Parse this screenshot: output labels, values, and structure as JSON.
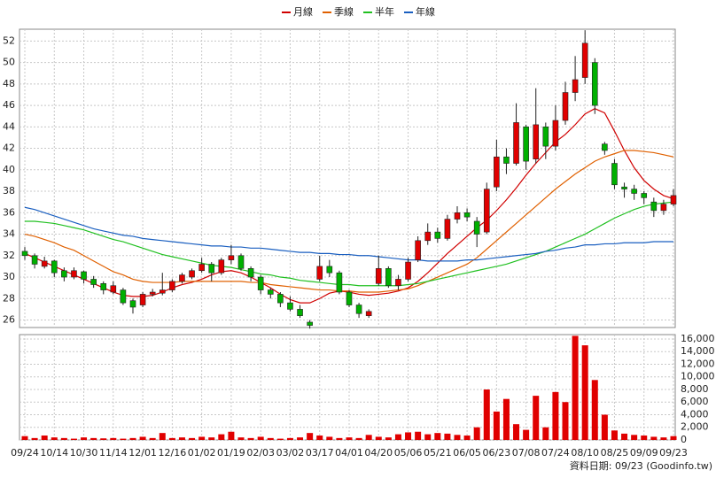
{
  "chart_data": {
    "type": "candlestick",
    "legend_position": "top",
    "grid": true,
    "categories": [
      "09/24",
      null,
      null,
      "10/14",
      null,
      null,
      "10/30",
      null,
      null,
      "11/14",
      null,
      null,
      "12/01",
      null,
      null,
      "12/16",
      null,
      null,
      "01/02",
      null,
      null,
      "01/19",
      null,
      null,
      "02/03",
      null,
      null,
      "03/02",
      null,
      null,
      "03/17",
      null,
      null,
      "04/01",
      null,
      null,
      "04/20",
      null,
      null,
      "05/06",
      null,
      null,
      "05/21",
      null,
      null,
      "06/05",
      null,
      null,
      "06/23",
      null,
      null,
      "07/08",
      null,
      null,
      "07/24",
      null,
      null,
      "08/10",
      null,
      null,
      "08/25",
      null,
      null,
      "09/09",
      null,
      null,
      "09/23"
    ],
    "open": [
      32.4,
      32.0,
      31.0,
      31.5,
      30.6,
      30.0,
      30.5,
      29.8,
      29.4,
      28.6,
      28.8,
      27.8,
      27.4,
      28.4,
      28.5,
      28.8,
      29.6,
      30.0,
      30.6,
      31.2,
      30.4,
      31.6,
      32.0,
      30.8,
      30.0,
      28.8,
      28.4,
      27.6,
      27.0,
      25.8,
      29.8,
      31.0,
      30.4,
      28.6,
      27.4,
      26.4,
      29.4,
      30.8,
      29.2,
      29.8,
      31.6,
      33.4,
      34.2,
      33.6,
      35.4,
      36.0,
      35.2,
      34.2,
      38.4,
      41.2,
      40.6,
      44.0,
      41.0,
      44.0,
      42.2,
      44.6,
      47.2,
      48.6,
      50.0,
      42.4,
      40.6,
      38.4,
      38.2,
      37.8,
      37.0,
      36.2,
      36.8
    ],
    "high": [
      32.8,
      32.2,
      31.9,
      31.6,
      30.9,
      30.9,
      30.6,
      30.1,
      29.6,
      29.6,
      29.0,
      28.0,
      28.6,
      28.9,
      30.4,
      29.8,
      30.4,
      30.8,
      31.8,
      31.4,
      31.8,
      33.0,
      32.2,
      31.0,
      30.2,
      29.0,
      28.6,
      28.2,
      27.4,
      26.0,
      32.0,
      31.6,
      30.6,
      28.8,
      27.6,
      27.0,
      32.0,
      31.0,
      30.2,
      31.8,
      33.8,
      35.0,
      34.6,
      35.8,
      36.6,
      36.4,
      35.6,
      38.8,
      42.8,
      42.0,
      46.2,
      44.2,
      47.6,
      44.4,
      46.0,
      48.2,
      50.6,
      53.0,
      50.4,
      42.6,
      41.0,
      38.8,
      38.6,
      38.0,
      37.4,
      37.2,
      38.2
    ],
    "low": [
      31.6,
      30.8,
      30.8,
      30.0,
      29.6,
      29.8,
      29.4,
      29.0,
      28.4,
      28.4,
      27.4,
      26.6,
      27.2,
      28.2,
      28.3,
      28.6,
      29.4,
      29.8,
      30.4,
      29.6,
      30.2,
      31.2,
      30.6,
      29.6,
      28.4,
      28.0,
      27.2,
      26.8,
      26.2,
      25.2,
      29.6,
      30.0,
      28.4,
      27.2,
      26.2,
      26.2,
      29.2,
      29.0,
      28.8,
      29.6,
      31.4,
      33.0,
      33.2,
      33.4,
      35.0,
      35.2,
      32.8,
      34.0,
      38.0,
      39.6,
      40.4,
      40.0,
      40.6,
      41.0,
      41.8,
      44.2,
      46.4,
      48.0,
      45.2,
      41.4,
      38.2,
      37.4,
      37.2,
      36.8,
      35.6,
      35.8,
      36.6
    ],
    "close": [
      32.0,
      31.2,
      31.5,
      30.4,
      30.0,
      30.6,
      29.8,
      29.3,
      28.8,
      29.2,
      27.6,
      27.2,
      28.4,
      28.6,
      28.8,
      29.6,
      30.2,
      30.6,
      31.2,
      30.4,
      31.6,
      32.0,
      30.8,
      30.0,
      28.8,
      28.4,
      27.6,
      27.0,
      26.4,
      25.5,
      31.0,
      30.4,
      28.6,
      27.4,
      26.6,
      26.8,
      30.8,
      29.2,
      29.8,
      31.4,
      33.4,
      34.2,
      33.6,
      35.4,
      36.0,
      35.6,
      34.0,
      38.2,
      41.2,
      40.6,
      44.4,
      40.8,
      44.2,
      42.2,
      44.6,
      47.2,
      48.4,
      51.8,
      46.0,
      41.8,
      38.6,
      38.2,
      37.8,
      37.4,
      36.2,
      36.8,
      37.6
    ],
    "up_color": "#e00000",
    "down_color": "#00b000",
    "ylim": [
      25.3,
      53.1
    ],
    "yticks": [
      26,
      28,
      30,
      32,
      34,
      36,
      38,
      40,
      42,
      44,
      46,
      48,
      50,
      52
    ],
    "series": [
      {
        "name": "月線",
        "color": "#d00000",
        "values": [
          32.2,
          31.8,
          31.4,
          31.0,
          30.6,
          30.2,
          29.8,
          29.4,
          29.0,
          28.6,
          28.3,
          28.2,
          28.2,
          28.3,
          28.6,
          29.0,
          29.3,
          29.5,
          29.8,
          30.2,
          30.5,
          30.6,
          30.4,
          30.0,
          29.5,
          29.0,
          28.4,
          27.9,
          27.6,
          27.6,
          28.0,
          28.5,
          28.7,
          28.6,
          28.4,
          28.3,
          28.4,
          28.5,
          28.7,
          29.0,
          29.6,
          30.4,
          31.3,
          32.2,
          33.0,
          33.8,
          34.6,
          35.3,
          36.2,
          37.2,
          38.3,
          39.5,
          40.6,
          41.6,
          42.6,
          43.3,
          44.2,
          45.2,
          45.7,
          45.3,
          43.6,
          41.8,
          40.2,
          39.0,
          38.2,
          37.6,
          37.3
        ]
      },
      {
        "name": "季線",
        "color": "#e06000",
        "values": [
          34.0,
          33.8,
          33.5,
          33.2,
          32.8,
          32.5,
          32.0,
          31.5,
          31.0,
          30.5,
          30.2,
          29.8,
          29.6,
          29.5,
          29.5,
          29.5,
          29.6,
          29.6,
          29.6,
          29.6,
          29.6,
          29.6,
          29.6,
          29.5,
          29.5,
          29.3,
          29.2,
          29.1,
          29.0,
          28.9,
          28.8,
          28.8,
          28.7,
          28.7,
          28.6,
          28.6,
          28.6,
          28.7,
          28.8,
          28.9,
          29.2,
          29.6,
          30.0,
          30.4,
          30.8,
          31.2,
          31.8,
          32.6,
          33.4,
          34.2,
          35.0,
          35.8,
          36.6,
          37.4,
          38.2,
          38.9,
          39.6,
          40.2,
          40.8,
          41.2,
          41.5,
          41.8,
          41.8,
          41.7,
          41.6,
          41.4,
          41.2
        ]
      },
      {
        "name": "半年",
        "color": "#20c020",
        "values": [
          35.2,
          35.2,
          35.1,
          35.0,
          34.8,
          34.6,
          34.4,
          34.1,
          33.8,
          33.5,
          33.3,
          33.0,
          32.7,
          32.4,
          32.1,
          31.9,
          31.7,
          31.5,
          31.3,
          31.1,
          31.0,
          30.9,
          30.7,
          30.5,
          30.3,
          30.2,
          30.0,
          29.9,
          29.7,
          29.6,
          29.5,
          29.4,
          29.3,
          29.3,
          29.2,
          29.2,
          29.2,
          29.2,
          29.2,
          29.3,
          29.4,
          29.6,
          29.8,
          30.0,
          30.2,
          30.4,
          30.6,
          30.8,
          31.0,
          31.2,
          31.5,
          31.8,
          32.1,
          32.4,
          32.8,
          33.2,
          33.6,
          34.0,
          34.5,
          35.0,
          35.5,
          35.9,
          36.3,
          36.6,
          36.8,
          36.9,
          37.0
        ]
      },
      {
        "name": "年線",
        "color": "#1a5fc0",
        "values": [
          36.5,
          36.3,
          36.0,
          35.7,
          35.4,
          35.1,
          34.8,
          34.5,
          34.3,
          34.1,
          33.9,
          33.8,
          33.6,
          33.5,
          33.4,
          33.3,
          33.2,
          33.1,
          33.0,
          32.9,
          32.9,
          32.8,
          32.8,
          32.7,
          32.7,
          32.6,
          32.5,
          32.4,
          32.3,
          32.3,
          32.2,
          32.2,
          32.1,
          32.1,
          32.0,
          32.0,
          31.9,
          31.8,
          31.7,
          31.6,
          31.6,
          31.5,
          31.5,
          31.5,
          31.5,
          31.6,
          31.6,
          31.7,
          31.8,
          31.9,
          32.0,
          32.1,
          32.2,
          32.4,
          32.5,
          32.7,
          32.8,
          33.0,
          33.0,
          33.1,
          33.1,
          33.2,
          33.2,
          33.2,
          33.3,
          33.3,
          33.3
        ]
      }
    ],
    "volume": {
      "color": "#e00000",
      "values": [
        600,
        300,
        700,
        400,
        300,
        200,
        400,
        300,
        250,
        300,
        200,
        300,
        500,
        300,
        1100,
        300,
        400,
        300,
        500,
        400,
        900,
        1300,
        400,
        300,
        500,
        300,
        200,
        300,
        400,
        1100,
        700,
        500,
        300,
        400,
        300,
        800,
        500,
        400,
        900,
        1200,
        1300,
        900,
        1100,
        1000,
        800,
        700,
        2000,
        8000,
        4500,
        6500,
        2500,
        1600,
        7000,
        2000,
        7600,
        6000,
        16500,
        15000,
        9500,
        4000,
        1500,
        1000,
        800,
        700,
        500,
        400,
        600
      ],
      "ylim": [
        0,
        16700
      ],
      "yticks": [
        0,
        {
          "value": 2000,
          "label": "2,000"
        },
        {
          "value": 4000,
          "label": "4,000"
        },
        {
          "value": 6000,
          "label": "6,000"
        },
        {
          "value": 8000,
          "label": "8,000"
        },
        {
          "value": 10000,
          "label": "10,000"
        },
        {
          "value": 12000,
          "label": "12,000"
        },
        {
          "value": 14000,
          "label": "14,000"
        },
        {
          "value": 16000,
          "label": "16,000"
        }
      ]
    },
    "footer": "資料日期: 09/23 (Goodinfo.tw)"
  }
}
